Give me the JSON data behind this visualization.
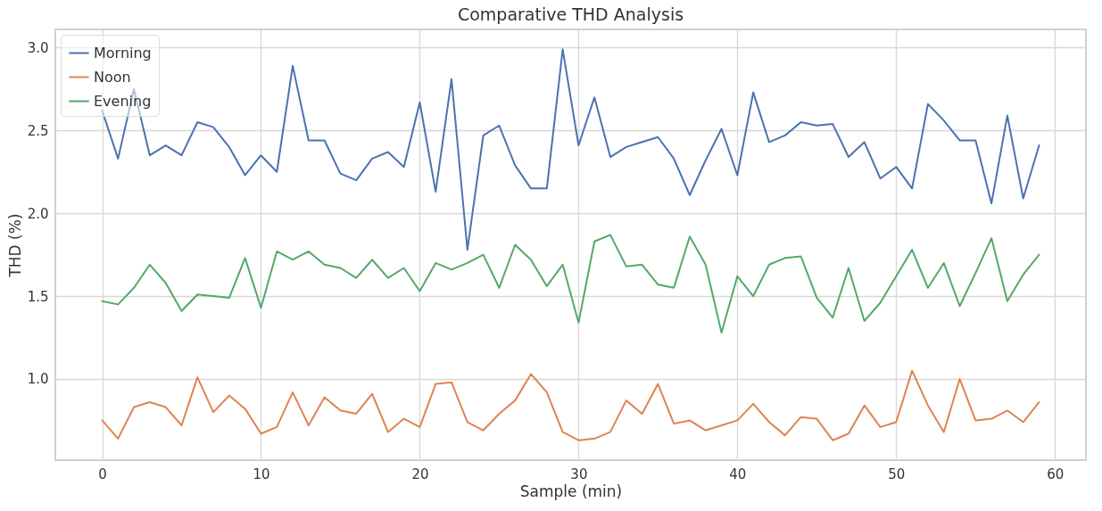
{
  "chart_data": {
    "type": "line",
    "title": "Comparative THD Analysis",
    "xlabel": "Sample (min)",
    "ylabel": "THD (%)",
    "x": [
      0,
      1,
      2,
      3,
      4,
      5,
      6,
      7,
      8,
      9,
      10,
      11,
      12,
      13,
      14,
      15,
      16,
      17,
      18,
      19,
      20,
      21,
      22,
      23,
      24,
      25,
      26,
      27,
      28,
      29,
      30,
      31,
      32,
      33,
      34,
      35,
      36,
      37,
      38,
      39,
      40,
      41,
      42,
      43,
      44,
      45,
      46,
      47,
      48,
      49,
      50,
      51,
      52,
      53,
      54,
      55,
      56,
      57,
      58,
      59
    ],
    "series": [
      {
        "name": "Morning",
        "color": "#4c72b0",
        "values": [
          2.62,
          2.33,
          2.75,
          2.35,
          2.41,
          2.35,
          2.55,
          2.52,
          2.4,
          2.23,
          2.35,
          2.25,
          2.89,
          2.44,
          2.44,
          2.24,
          2.2,
          2.33,
          2.37,
          2.28,
          2.67,
          2.13,
          2.81,
          1.78,
          2.47,
          2.53,
          2.29,
          2.15,
          2.15,
          2.99,
          2.41,
          2.7,
          2.34,
          2.4,
          2.43,
          2.46,
          2.33,
          2.11,
          2.32,
          2.51,
          2.23,
          2.73,
          2.43,
          2.47,
          2.55,
          2.53,
          2.54,
          2.34,
          2.43,
          2.21,
          2.28,
          2.15,
          2.66,
          2.56,
          2.44,
          2.44,
          2.06,
          2.59,
          2.09,
          2.41
        ]
      },
      {
        "name": "Noon",
        "color": "#dd8452",
        "values": [
          0.75,
          0.64,
          0.83,
          0.86,
          0.83,
          0.72,
          1.01,
          0.8,
          0.9,
          0.82,
          0.67,
          0.71,
          0.92,
          0.72,
          0.89,
          0.81,
          0.79,
          0.91,
          0.68,
          0.76,
          0.71,
          0.97,
          0.98,
          0.74,
          0.69,
          0.79,
          0.87,
          1.03,
          0.92,
          0.68,
          0.63,
          0.64,
          0.68,
          0.87,
          0.79,
          0.97,
          0.73,
          0.75,
          0.69,
          0.72,
          0.75,
          0.85,
          0.74,
          0.66,
          0.77,
          0.76,
          0.63,
          0.67,
          0.84,
          0.71,
          0.74,
          1.05,
          0.84,
          0.68,
          1.0,
          0.75,
          0.76,
          0.81,
          0.74,
          0.86
        ]
      },
      {
        "name": "Evening",
        "color": "#55a868",
        "values": [
          1.47,
          1.45,
          1.55,
          1.69,
          1.58,
          1.41,
          1.51,
          1.5,
          1.49,
          1.73,
          1.43,
          1.77,
          1.72,
          1.77,
          1.69,
          1.67,
          1.61,
          1.72,
          1.61,
          1.67,
          1.53,
          1.7,
          1.66,
          1.7,
          1.75,
          1.55,
          1.81,
          1.72,
          1.56,
          1.69,
          1.34,
          1.83,
          1.87,
          1.68,
          1.69,
          1.57,
          1.55,
          1.86,
          1.69,
          1.28,
          1.62,
          1.5,
          1.69,
          1.73,
          1.74,
          1.49,
          1.37,
          1.67,
          1.35,
          1.46,
          1.62,
          1.78,
          1.55,
          1.7,
          1.44,
          1.64,
          1.85,
          1.47,
          1.63,
          1.75
        ]
      }
    ],
    "xlim": [
      -2.95,
      61.95
    ],
    "xticks": [
      0,
      10,
      20,
      30,
      40,
      50,
      60
    ],
    "ylim": [
      0.51,
      3.11
    ],
    "yticks": [
      {
        "value": 1,
        "label": "1.0"
      },
      1.5,
      {
        "value": 2,
        "label": "2.0"
      },
      2.5,
      {
        "value": 3,
        "label": "3.0"
      }
    ],
    "grid": true,
    "legend": "top left",
    "line_style": "solid",
    "marker": "none"
  }
}
